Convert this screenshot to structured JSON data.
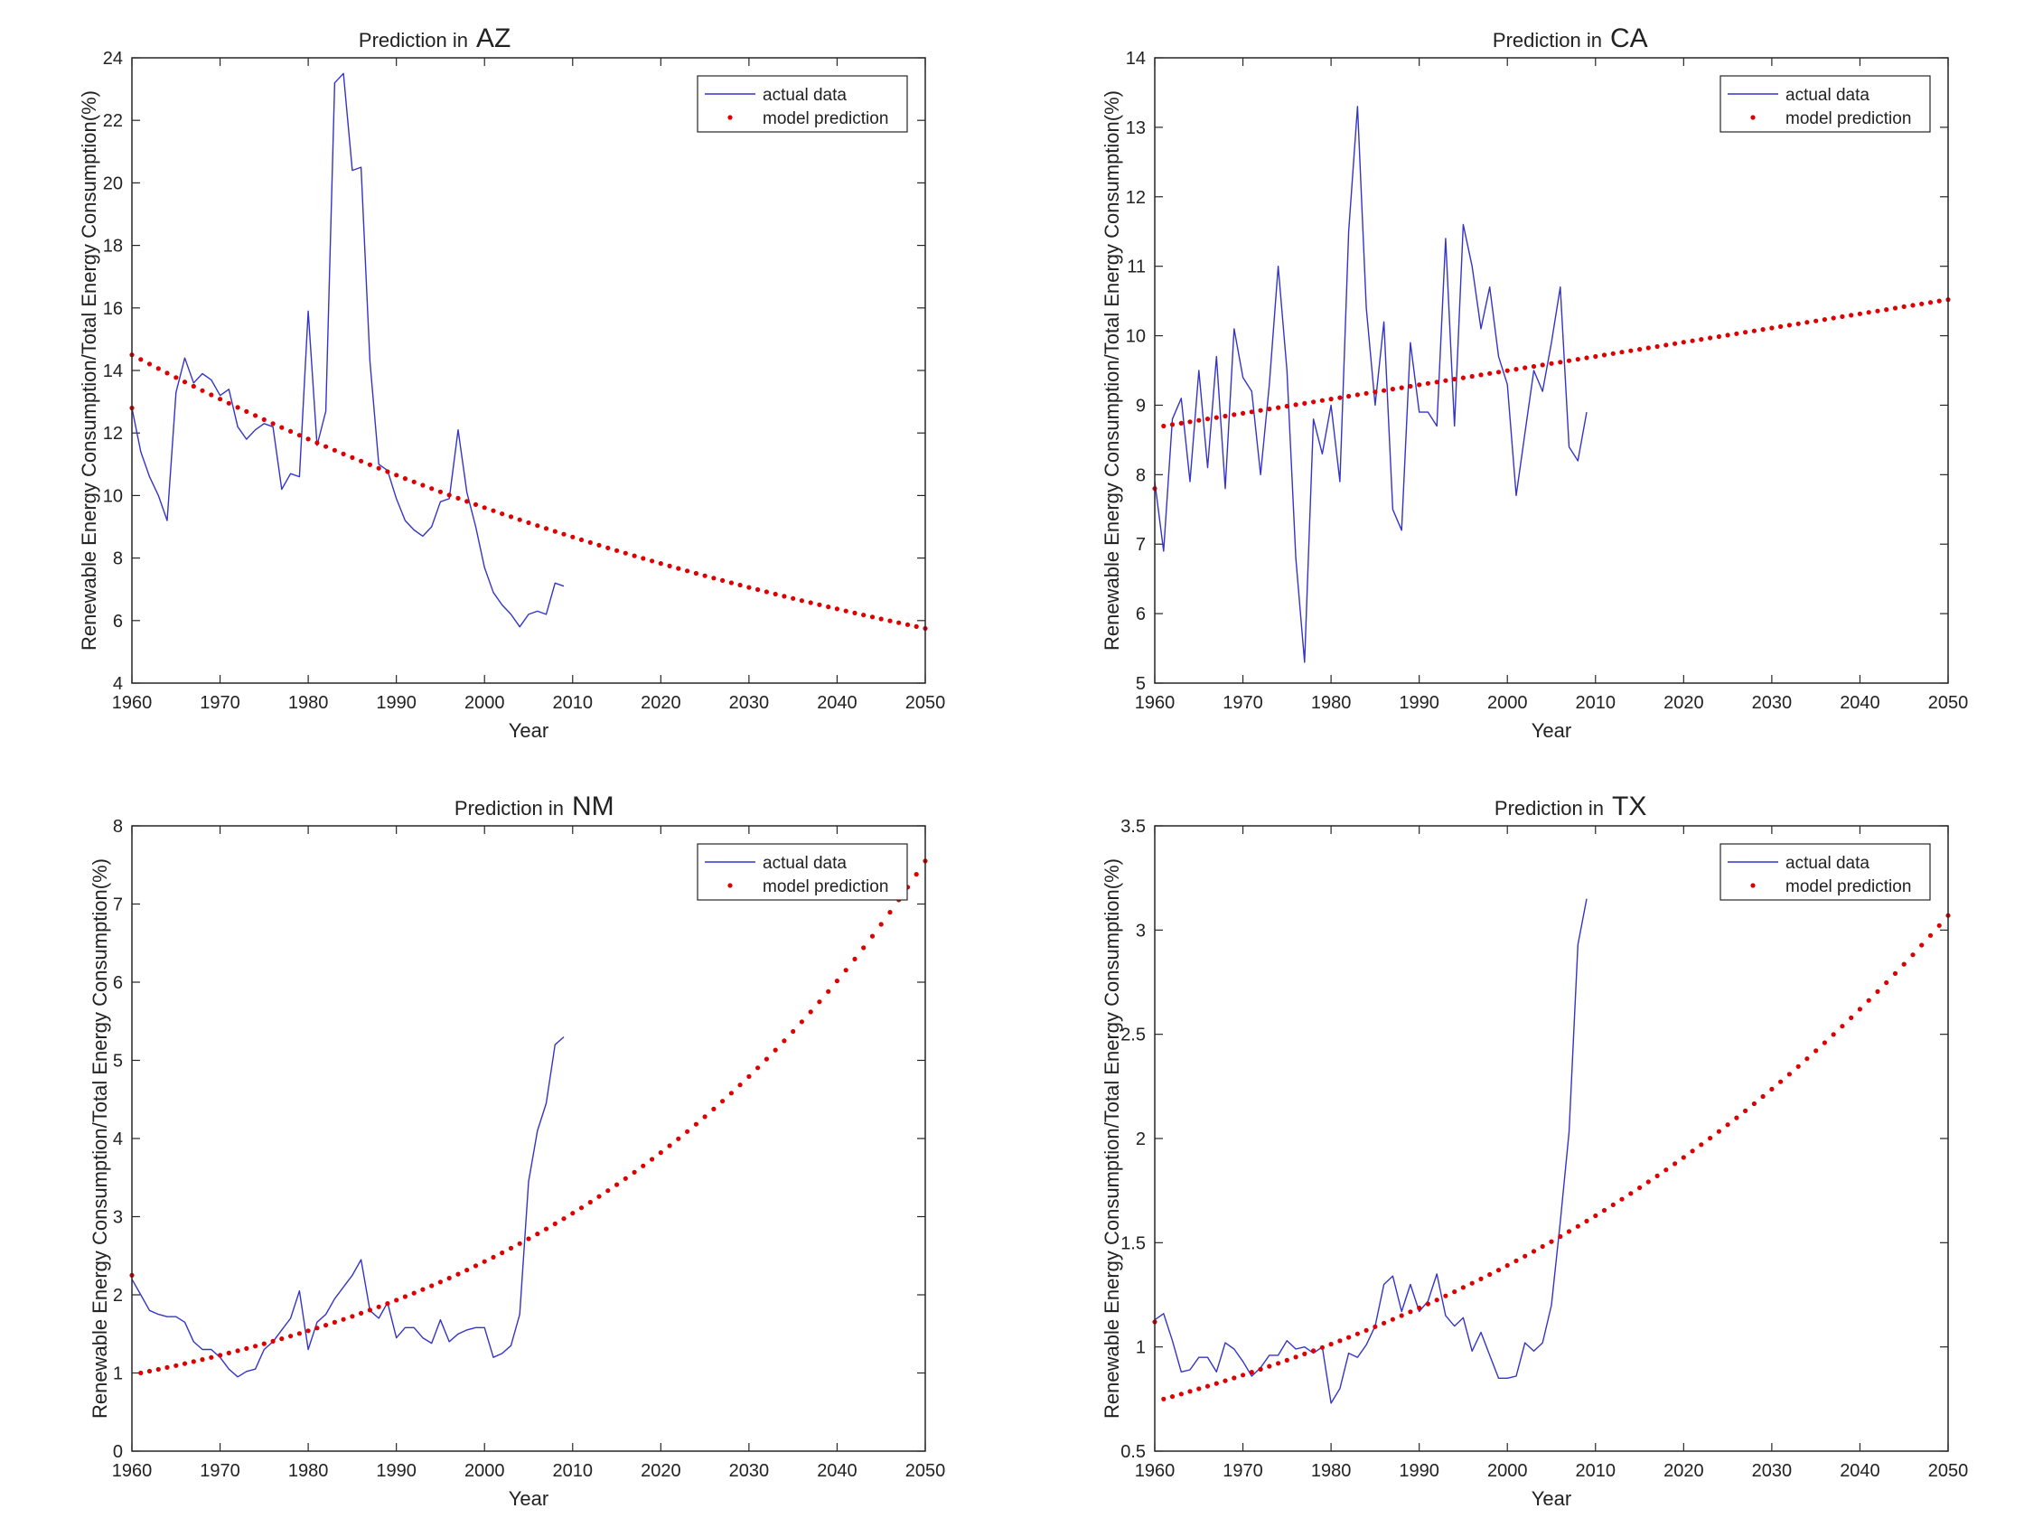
{
  "colors": {
    "actual": "#3434c8",
    "model": "#dd0000",
    "axis": "#262626",
    "background": "#ffffff"
  },
  "chart_data": [
    {
      "type": "line",
      "title_prefix": "Prediction in",
      "title_state": "AZ",
      "xlabel": "Year",
      "ylabel": "Renewable Energy Consumption/Total Energy Consumption(%)",
      "xlim": [
        1960,
        2050
      ],
      "ylim": [
        4,
        24
      ],
      "xticks": [
        "1960",
        "1970",
        "1980",
        "1990",
        "2000",
        "2010",
        "2020",
        "2030",
        "2040",
        "2050"
      ],
      "yticks": [
        "4",
        "6",
        "8",
        "10",
        "12",
        "14",
        "16",
        "18",
        "20",
        "22",
        "24"
      ],
      "legend": [
        "actual data",
        "model prediction"
      ],
      "legend_position": "top-right",
      "actual": {
        "x": [
          1960,
          1961,
          1962,
          1963,
          1964,
          1965,
          1966,
          1967,
          1968,
          1969,
          1970,
          1971,
          1972,
          1973,
          1974,
          1975,
          1976,
          1977,
          1978,
          1979,
          1980,
          1981,
          1982,
          1983,
          1984,
          1985,
          1986,
          1987,
          1988,
          1989,
          1990,
          1991,
          1992,
          1993,
          1994,
          1995,
          1996,
          1997,
          1998,
          1999,
          2000,
          2001,
          2002,
          2003,
          2004,
          2005,
          2006,
          2007,
          2008,
          2009
        ],
        "y": [
          12.8,
          11.4,
          10.6,
          10.0,
          9.2,
          13.3,
          14.4,
          13.6,
          13.9,
          13.7,
          13.2,
          13.4,
          12.2,
          11.8,
          12.1,
          12.3,
          12.2,
          10.2,
          10.7,
          10.6,
          15.9,
          11.6,
          12.7,
          23.2,
          23.5,
          20.4,
          20.5,
          14.3,
          11.0,
          10.8,
          9.9,
          9.2,
          8.9,
          8.7,
          9.0,
          9.8,
          9.9,
          12.1,
          10.1,
          9.0,
          7.7,
          6.9,
          6.5,
          6.2,
          5.8,
          6.2,
          6.3,
          6.2,
          7.2,
          7.1
        ]
      },
      "model": {
        "x_start": 1960,
        "x_end": 2050,
        "step": 1,
        "y_start": 14.5,
        "y_end": 5.75,
        "shape": "exponential",
        "first_point": [
          1960,
          12.8
        ]
      }
    },
    {
      "type": "line",
      "title_prefix": "Prediction in",
      "title_state": "CA",
      "xlabel": "Year",
      "ylabel": "Renewable Energy Consumption/Total Energy Consumption(%)",
      "xlim": [
        1960,
        2050
      ],
      "ylim": [
        5,
        14
      ],
      "xticks": [
        "1960",
        "1970",
        "1980",
        "1990",
        "2000",
        "2010",
        "2020",
        "2030",
        "2040",
        "2050"
      ],
      "yticks": [
        "5",
        "6",
        "7",
        "8",
        "9",
        "10",
        "11",
        "12",
        "13",
        "14"
      ],
      "legend": [
        "actual data",
        "model prediction"
      ],
      "legend_position": "top-right",
      "actual": {
        "x": [
          1960,
          1961,
          1962,
          1963,
          1964,
          1965,
          1966,
          1967,
          1968,
          1969,
          1970,
          1971,
          1972,
          1973,
          1974,
          1975,
          1976,
          1977,
          1978,
          1979,
          1980,
          1981,
          1982,
          1983,
          1984,
          1985,
          1986,
          1987,
          1988,
          1989,
          1990,
          1991,
          1992,
          1993,
          1994,
          1995,
          1996,
          1997,
          1998,
          1999,
          2000,
          2001,
          2002,
          2003,
          2004,
          2005,
          2006,
          2007,
          2008,
          2009
        ],
        "y": [
          7.9,
          6.9,
          8.8,
          9.1,
          7.9,
          9.5,
          8.1,
          9.7,
          7.8,
          10.1,
          9.4,
          9.2,
          8.0,
          9.3,
          11.0,
          9.5,
          6.8,
          5.3,
          8.8,
          8.3,
          9.0,
          7.9,
          11.5,
          13.3,
          10.4,
          9.0,
          10.2,
          7.5,
          7.2,
          9.9,
          8.9,
          8.9,
          8.7,
          11.4,
          8.7,
          11.6,
          11.0,
          10.1,
          10.7,
          9.7,
          9.3,
          7.7,
          8.6,
          9.5,
          9.2,
          9.9,
          10.7,
          8.4,
          8.2,
          8.9
        ]
      },
      "model": {
        "x_start": 1961,
        "x_end": 2050,
        "step": 1,
        "y_start": 8.7,
        "y_end": 10.52,
        "shape": "linear",
        "first_point": [
          1960,
          7.8
        ]
      }
    },
    {
      "type": "line",
      "title_prefix": "Prediction in",
      "title_state": "NM",
      "xlabel": "Year",
      "ylabel": "Renewable Energy Consumption/Total Energy Consumption(%)",
      "xlim": [
        1960,
        2050
      ],
      "ylim": [
        0,
        8
      ],
      "xticks": [
        "1960",
        "1970",
        "1980",
        "1990",
        "2000",
        "2010",
        "2020",
        "2030",
        "2040",
        "2050"
      ],
      "yticks": [
        "0",
        "1",
        "2",
        "3",
        "4",
        "5",
        "6",
        "7",
        "8"
      ],
      "legend": [
        "actual data",
        "model prediction"
      ],
      "legend_position": "top-right",
      "actual": {
        "x": [
          1960,
          1961,
          1962,
          1963,
          1964,
          1965,
          1966,
          1967,
          1968,
          1969,
          1970,
          1971,
          1972,
          1973,
          1974,
          1975,
          1976,
          1977,
          1978,
          1979,
          1980,
          1981,
          1982,
          1983,
          1984,
          1985,
          1986,
          1987,
          1988,
          1989,
          1990,
          1991,
          1992,
          1993,
          1994,
          1995,
          1996,
          1997,
          1998,
          1999,
          2000,
          2001,
          2002,
          2003,
          2004,
          2005,
          2006,
          2007,
          2008,
          2009
        ],
        "y": [
          2.2,
          2.0,
          1.8,
          1.75,
          1.72,
          1.72,
          1.65,
          1.4,
          1.3,
          1.3,
          1.2,
          1.05,
          0.95,
          1.02,
          1.05,
          1.3,
          1.4,
          1.55,
          1.7,
          2.05,
          1.3,
          1.65,
          1.75,
          1.95,
          2.1,
          2.25,
          2.45,
          1.8,
          1.7,
          1.9,
          1.45,
          1.58,
          1.58,
          1.45,
          1.38,
          1.68,
          1.4,
          1.5,
          1.55,
          1.58,
          1.58,
          1.2,
          1.25,
          1.35,
          1.75,
          3.45,
          4.1,
          4.45,
          5.2,
          5.3
        ]
      },
      "model": {
        "x_start": 1961,
        "x_end": 2050,
        "step": 1,
        "y_start": 1.0,
        "y_end": 7.55,
        "shape": "exponential",
        "first_point": [
          1960,
          2.25
        ]
      }
    },
    {
      "type": "line",
      "title_prefix": "Prediction in",
      "title_state": "TX",
      "xlabel": "Year",
      "ylabel": "Renewable Energy Consumption/Total Energy Consumption(%)",
      "xlim": [
        1960,
        2050
      ],
      "ylim": [
        0.5,
        3.5
      ],
      "xticks": [
        "1960",
        "1970",
        "1980",
        "1990",
        "2000",
        "2010",
        "2020",
        "2030",
        "2040",
        "2050"
      ],
      "yticks": [
        "0.5",
        "1",
        "1.5",
        "2",
        "2.5",
        "3",
        "3.5"
      ],
      "legend": [
        "actual data",
        "model prediction"
      ],
      "legend_position": "top-right",
      "actual": {
        "x": [
          1960,
          1961,
          1962,
          1963,
          1964,
          1965,
          1966,
          1967,
          1968,
          1969,
          1970,
          1971,
          1972,
          1973,
          1974,
          1975,
          1976,
          1977,
          1978,
          1979,
          1980,
          1981,
          1982,
          1983,
          1984,
          1985,
          1986,
          1987,
          1988,
          1989,
          1990,
          1991,
          1992,
          1993,
          1994,
          1995,
          1996,
          1997,
          1998,
          1999,
          2000,
          2001,
          2002,
          2003,
          2004,
          2005,
          2006,
          2007,
          2008,
          2009
        ],
        "y": [
          1.13,
          1.16,
          1.03,
          0.88,
          0.89,
          0.95,
          0.95,
          0.88,
          1.02,
          0.99,
          0.93,
          0.86,
          0.9,
          0.96,
          0.96,
          1.03,
          0.99,
          1.0,
          0.97,
          1.0,
          0.73,
          0.8,
          0.97,
          0.95,
          1.01,
          1.1,
          1.3,
          1.34,
          1.17,
          1.3,
          1.17,
          1.22,
          1.35,
          1.15,
          1.1,
          1.14,
          0.98,
          1.07,
          0.96,
          0.85,
          0.85,
          0.86,
          1.02,
          0.98,
          1.02,
          1.2,
          1.6,
          2.03,
          2.93,
          3.15
        ]
      },
      "model": {
        "x_start": 1961,
        "x_end": 2050,
        "step": 1,
        "y_start": 0.75,
        "y_end": 3.07,
        "shape": "exponential",
        "first_point": [
          1960,
          1.12
        ]
      }
    }
  ]
}
